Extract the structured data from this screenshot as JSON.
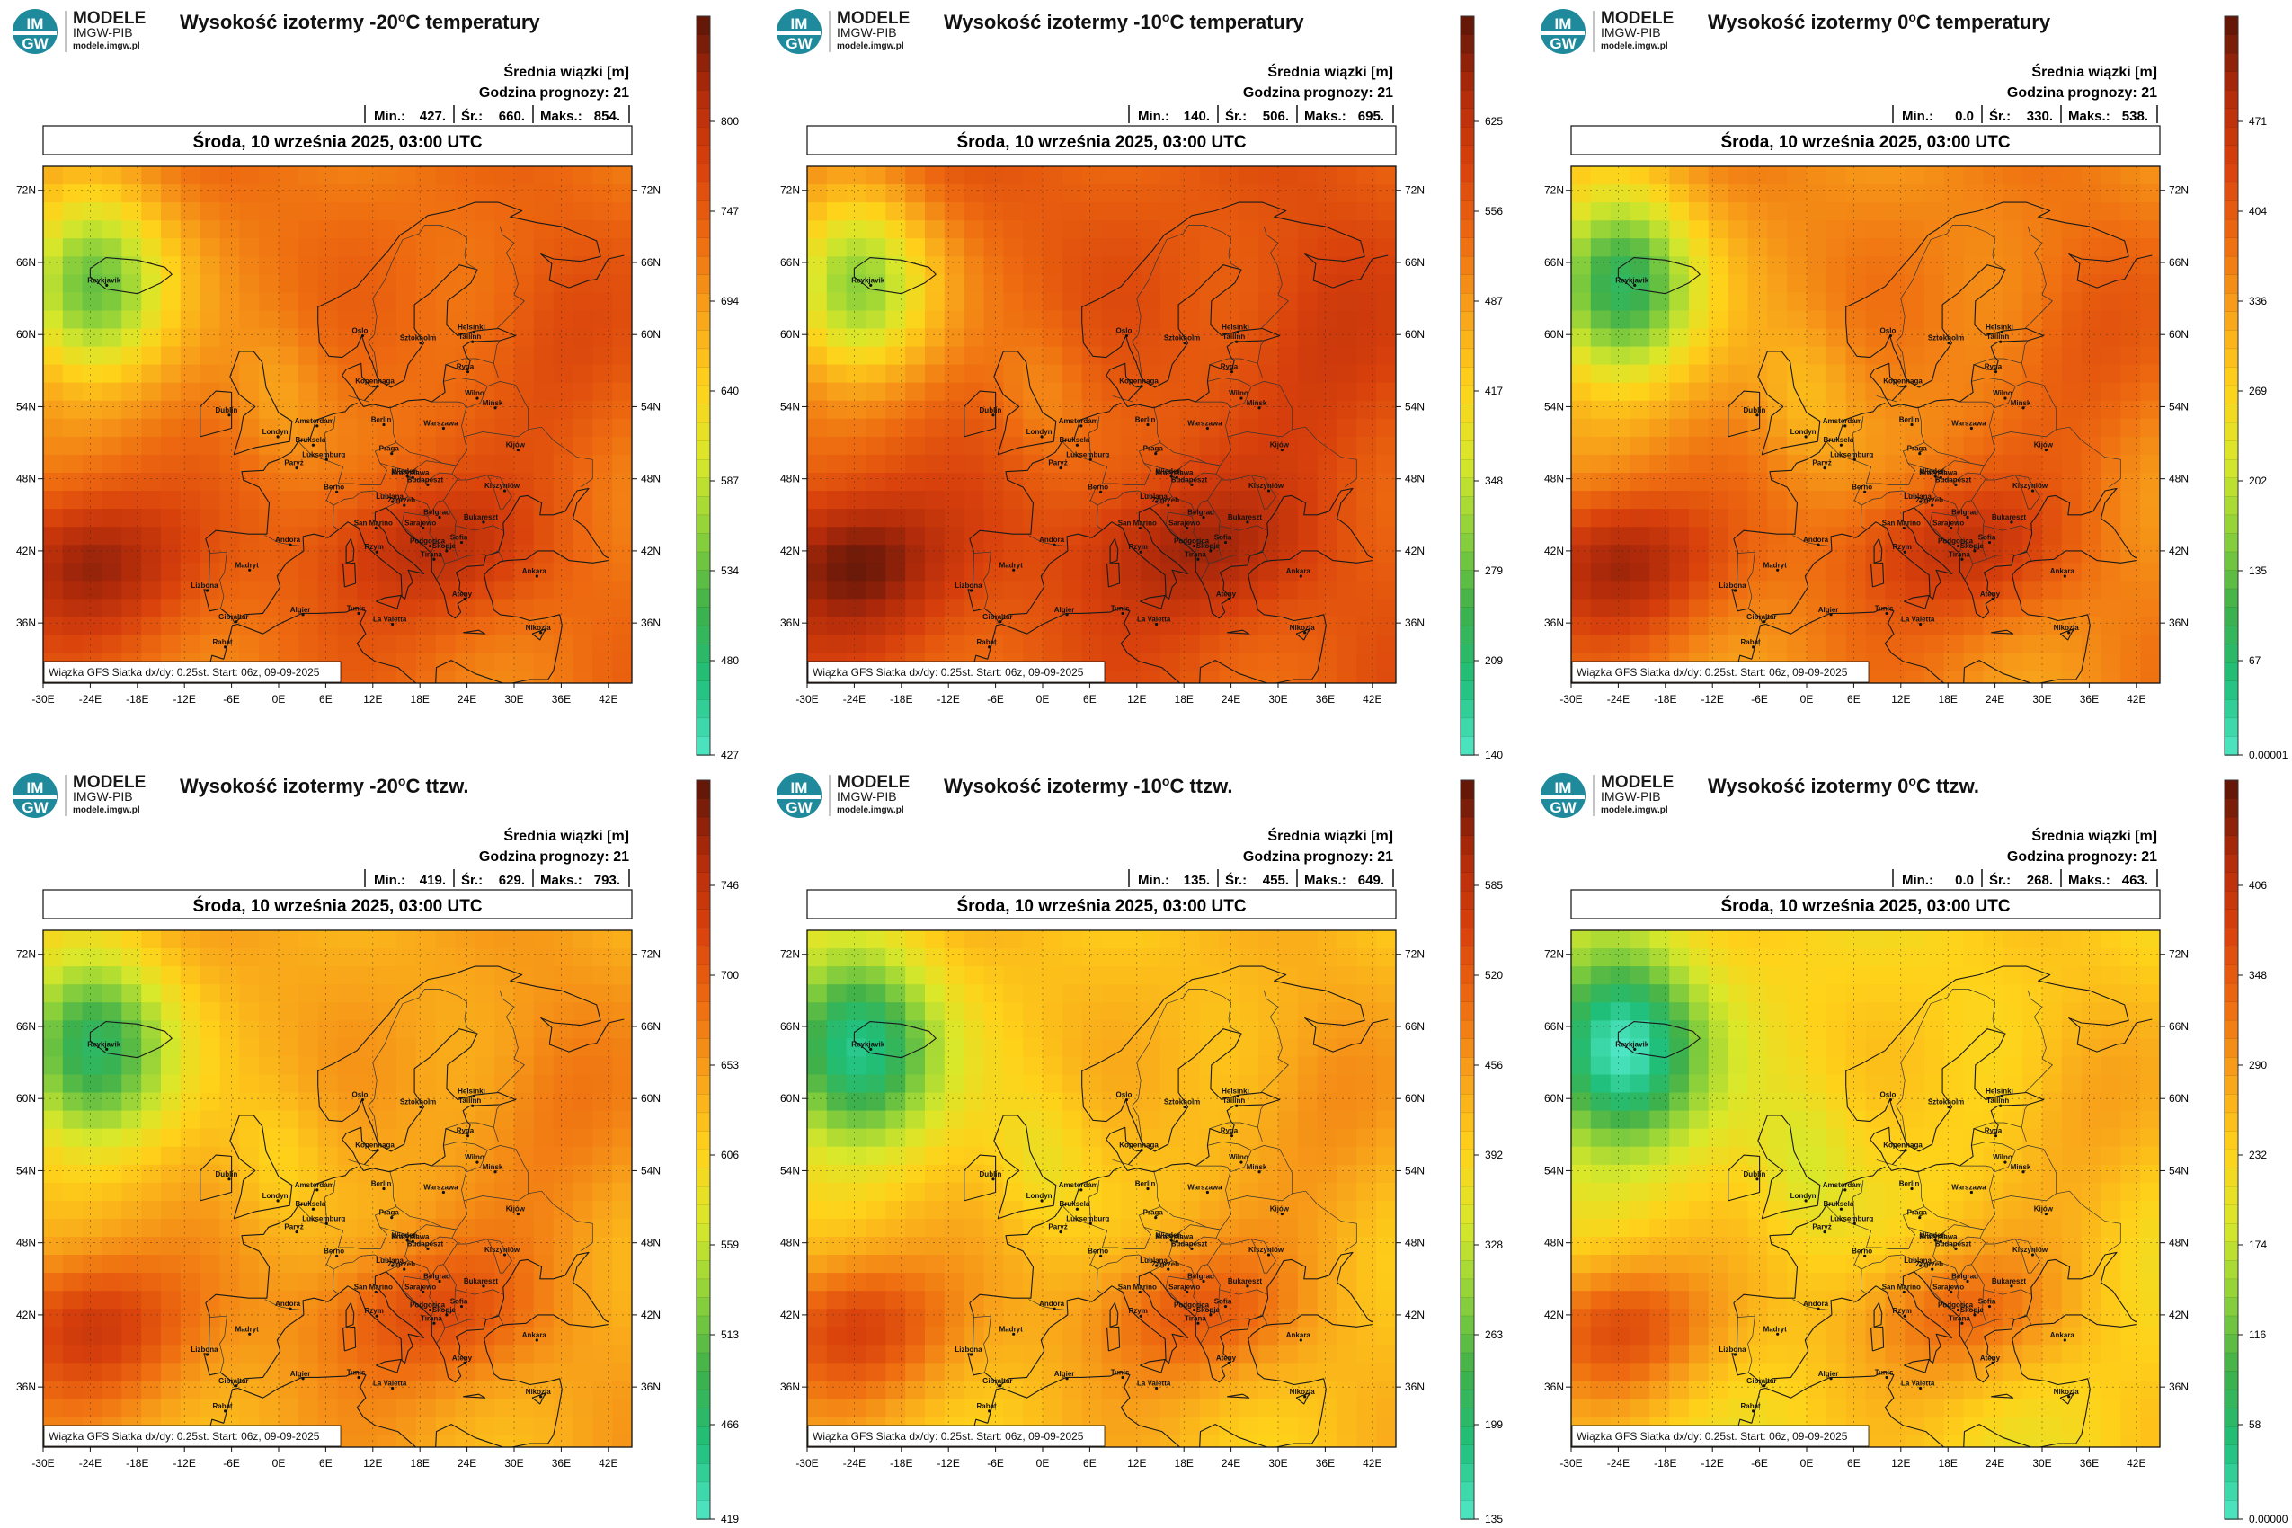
{
  "logo": {
    "brand": "MODELE",
    "org": "IMGW-PIB",
    "site": "modele.imgw.pl",
    "badge_top": "IM",
    "badge_bottom": "GW"
  },
  "common": {
    "valid_time": "Środa, 10 września 2025, 03:00 UTC",
    "legend_line1": "Średnia wiązki [m]",
    "legend_line2": "Godzina prognozy: 21",
    "footer": "Wiązka GFS Siatka dx/dy: 0.25st. Start: 06z, 09-09-2025",
    "min_label": "Min.:",
    "avg_label": "Śr.:",
    "max_label": "Maks.:"
  },
  "axes": {
    "lat_ticks": [
      "72N",
      "66N",
      "60N",
      "54N",
      "48N",
      "42N",
      "36N"
    ],
    "lon_ticks": [
      "-30E",
      "-24E",
      "-18E",
      "-12E",
      "-6E",
      "0E",
      "6E",
      "12E",
      "18E",
      "24E",
      "30E",
      "36E",
      "42E"
    ]
  },
  "cities": [
    {
      "name": "Reykjavik"
    },
    {
      "name": "Oslo"
    },
    {
      "name": "Sztokholm"
    },
    {
      "name": "Helsinki"
    },
    {
      "name": "Tallinn"
    },
    {
      "name": "Ryga"
    },
    {
      "name": "Kopenhaga"
    },
    {
      "name": "Wilno"
    },
    {
      "name": "Mińsk"
    },
    {
      "name": "Dublin"
    },
    {
      "name": "Londyn"
    },
    {
      "name": "Amsterdam"
    },
    {
      "name": "Berlin"
    },
    {
      "name": "Warszawa"
    },
    {
      "name": "Bruksela"
    },
    {
      "name": "Luksemburg"
    },
    {
      "name": "Praga"
    },
    {
      "name": "Kijów"
    },
    {
      "name": "Paryż"
    },
    {
      "name": "Wiedeń"
    },
    {
      "name": "Bratysława"
    },
    {
      "name": "Berno"
    },
    {
      "name": "Budapeszt"
    },
    {
      "name": "Kiszyniów"
    },
    {
      "name": "Lublana"
    },
    {
      "name": "Zagrzeb"
    },
    {
      "name": "Belgrad"
    },
    {
      "name": "Bukareszt"
    },
    {
      "name": "San Marino"
    },
    {
      "name": "Sarajewo"
    },
    {
      "name": "Andora"
    },
    {
      "name": "Sofia"
    },
    {
      "name": "Podgorica"
    },
    {
      "name": "Rzym"
    },
    {
      "name": "Skopje"
    },
    {
      "name": "Madryt"
    },
    {
      "name": "Tirana"
    },
    {
      "name": "Ateny"
    },
    {
      "name": "Ankara"
    },
    {
      "name": "Lizbona"
    },
    {
      "name": "Algier"
    },
    {
      "name": "Tunis"
    },
    {
      "name": "La Valetta"
    },
    {
      "name": "Gibraltar"
    },
    {
      "name": "Rabat"
    },
    {
      "name": "Nikozja"
    }
  ],
  "panels": [
    {
      "title_pre": "Wysokość izotermy -20",
      "title_sup": "o",
      "title_post": "C temperatury",
      "min": "427.",
      "avg": "660.",
      "max": "854.",
      "colorbar_labels": [
        "800",
        "747",
        "694",
        "640",
        "587",
        "534",
        "480",
        "427"
      ],
      "field": {
        "warm_bias": 0.15,
        "amplitude": 0.85
      }
    },
    {
      "title_pre": "Wysokość izotermy -10",
      "title_sup": "o",
      "title_post": "C temperatury",
      "min": "140.",
      "avg": "506.",
      "max": "695.",
      "colorbar_labels": [
        "625",
        "556",
        "487",
        "417",
        "348",
        "279",
        "209",
        "140"
      ],
      "field": {
        "warm_bias": 0.2,
        "amplitude": 0.85
      }
    },
    {
      "title_pre": "Wysokość izotermy 0",
      "title_sup": "o",
      "title_post": "C temperatury",
      "min": "0.0",
      "avg": "330.",
      "max": "538.",
      "colorbar_labels": [
        "471",
        "404",
        "336",
        "269",
        "202",
        "135",
        "67",
        "0.00001"
      ],
      "field": {
        "warm_bias": 0.1,
        "amplitude": 0.95
      }
    },
    {
      "title_pre": "Wysokość izotermy -20",
      "title_sup": "o",
      "title_post": "C ttzw.",
      "min": "419.",
      "avg": "629.",
      "max": "793.",
      "colorbar_labels": [
        "746",
        "700",
        "653",
        "606",
        "559",
        "513",
        "466",
        "419"
      ],
      "field": {
        "warm_bias": 0.05,
        "amplitude": 0.85
      }
    },
    {
      "title_pre": "Wysokość izotermy -10",
      "title_sup": "o",
      "title_post": "C ttzw.",
      "min": "135.",
      "avg": "455.",
      "max": "649.",
      "colorbar_labels": [
        "585",
        "520",
        "456",
        "392",
        "328",
        "263",
        "199",
        "135"
      ],
      "field": {
        "warm_bias": 0.0,
        "amplitude": 0.9
      }
    },
    {
      "title_pre": "Wysokość izotermy 0",
      "title_sup": "o",
      "title_post": "C ttzw.",
      "min": "0.0",
      "avg": "268.",
      "max": "463.",
      "colorbar_labels": [
        "406",
        "348",
        "290",
        "232",
        "174",
        "116",
        "58",
        "0.00000"
      ],
      "field": {
        "warm_bias": -0.05,
        "amplitude": 0.95
      }
    }
  ],
  "colors": {
    "colormap": [
      "#50e8c8",
      "#1fbf7a",
      "#3fb04a",
      "#8ed13a",
      "#d9e82a",
      "#ffd21a",
      "#f8a21a",
      "#ee6a10",
      "#d8400c",
      "#b02a0a",
      "#5a1508"
    ]
  }
}
